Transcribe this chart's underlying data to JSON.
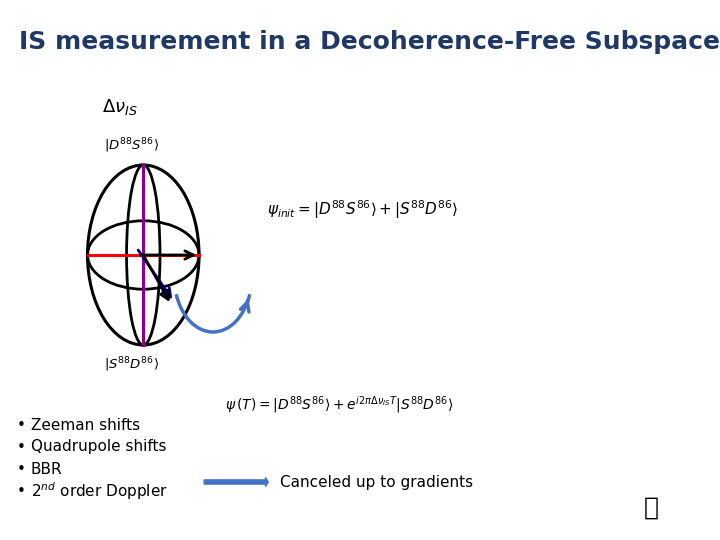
{
  "title": "IS measurement in a Decoherence-Free Subspace",
  "title_color": "#1F3864",
  "title_fontsize": 18,
  "bg_color": "#FFFFFF",
  "bullet_items": [
    "Zeeman shifts",
    "Quadrupole shifts",
    "BBR",
    "2$^{nd}$ order Doppler"
  ],
  "canceled_text": "Canceled up to gradients",
  "arrow_color": "#4472C4",
  "text_color": "#1F3864",
  "formula_delta_v": "$\\Delta\\nu_{IS}$",
  "label_top": "$|D^{88}S^{86}\\rangle$",
  "label_bottom": "$|S^{88}D^{86}\\rangle$",
  "formula_init": "$\\psi_{init} = |D^{88}S^{86}\\rangle + |S^{88}D^{86}\\rangle$",
  "formula_T": "$\\psi\\,(T) = |D^{88}S^{86}\\rangle + e^{i2\\pi\\Delta\\nu_{IS}T}|S^{88}D^{86}\\rangle$"
}
